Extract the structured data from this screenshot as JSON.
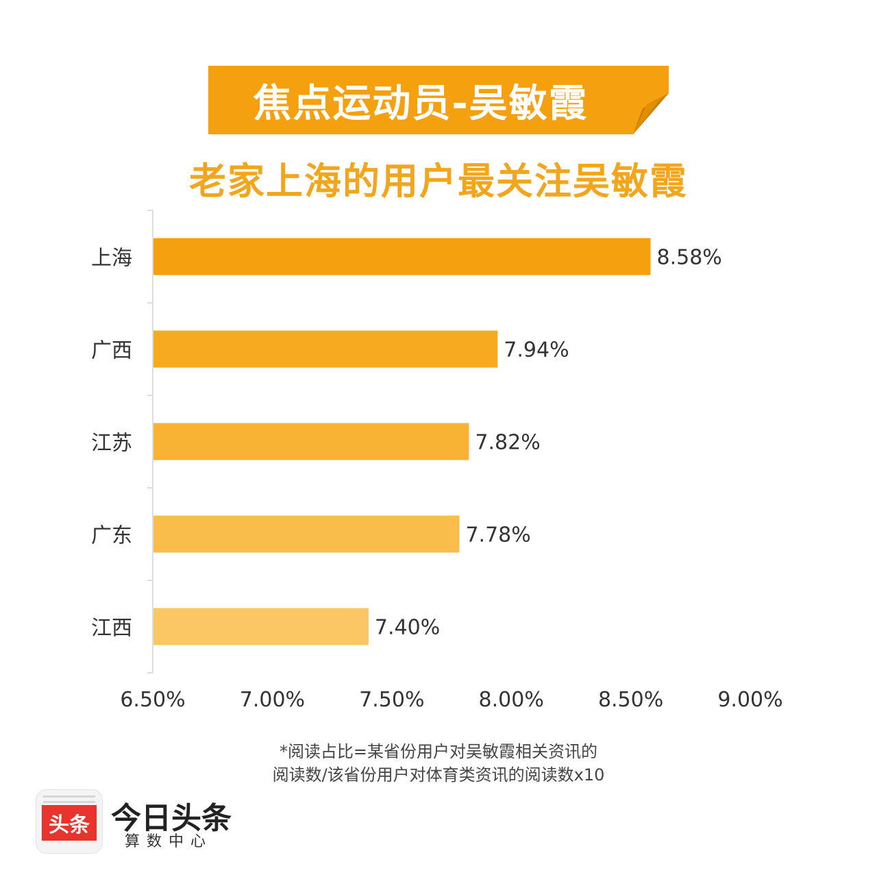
{
  "header": {
    "banner_title": "焦点运动员-吴敏霞",
    "subtitle": "老家上海的用户最关注吴敏霞"
  },
  "chart_data": {
    "type": "bar",
    "orientation": "horizontal",
    "categories": [
      "上海",
      "广西",
      "江苏",
      "广东",
      "江西"
    ],
    "values": [
      8.58,
      7.94,
      7.82,
      7.78,
      7.4
    ],
    "value_labels": [
      "8.58%",
      "7.94%",
      "7.82%",
      "7.78%",
      "7.40%"
    ],
    "bar_colors": [
      "#f5a00f",
      "#f7a91f",
      "#f8b334",
      "#f9bd4b",
      "#fac764"
    ],
    "xlim": [
      6.5,
      9.0
    ],
    "xticks": [
      6.5,
      7.0,
      7.5,
      8.0,
      8.5,
      9.0
    ],
    "xtick_labels": [
      "6.50%",
      "7.00%",
      "7.50%",
      "8.00%",
      "8.50%",
      "9.00%"
    ],
    "grid": false,
    "legend": "none"
  },
  "footnote": {
    "line1": "*阅读占比=某省份用户对吴敏霞相关资讯的",
    "line2": "阅读数/该省份用户对体育类资讯的阅读数x10"
  },
  "brand": {
    "logo_text": "头条",
    "name": "今日头条",
    "sub": "算数中心"
  },
  "colors": {
    "banner": "#f5a00f",
    "banner_fold": "#c97c00",
    "subtitle": "#f3a51c",
    "axis": "#dddddd"
  }
}
